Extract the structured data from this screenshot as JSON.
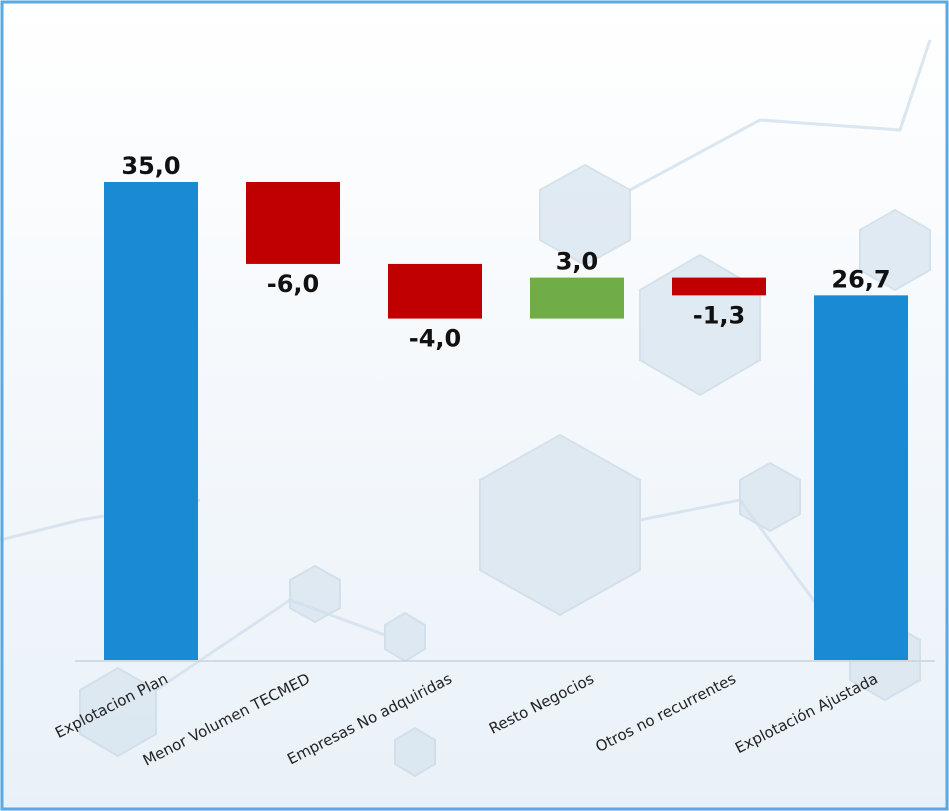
{
  "chart_data": {
    "type": "waterfall",
    "categories": [
      "Explotacion Plan",
      "Menor Volumen TECMED",
      "Empresas No adquiridas",
      "Resto Negocios",
      "Otros no recurrentes",
      "Explotación Ajustada"
    ],
    "values": [
      35.0,
      -6.0,
      -4.0,
      3.0,
      -1.3,
      26.7
    ],
    "value_labels": [
      "35,0",
      "-6,0",
      "-4,0",
      "3,0",
      "-1,3",
      "26,7"
    ],
    "colors": [
      "#1a8ad4",
      "#c00000",
      "#c00000",
      "#70ad47",
      "#c00000",
      "#1a8ad4"
    ]
  }
}
